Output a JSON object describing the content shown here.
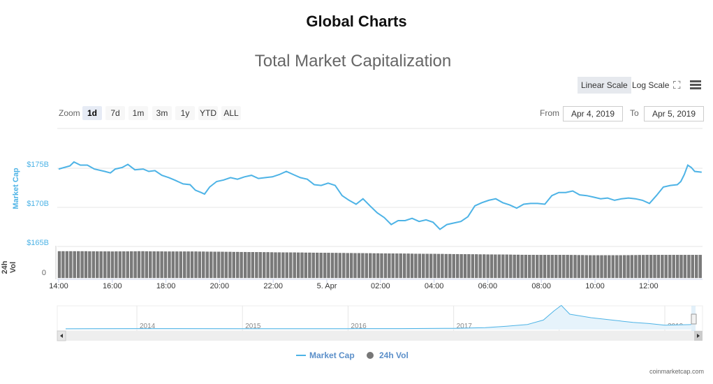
{
  "page_title": "Global Charts",
  "toolbar": {
    "linear": "Linear Scale",
    "log": "Log Scale",
    "fullscreen_icon": "expand-icon",
    "menu_icon": "hamburger-icon"
  },
  "zoom": {
    "label": "Zoom",
    "buttons": [
      "1d",
      "7d",
      "1m",
      "3m",
      "1y",
      "YTD",
      "ALL"
    ],
    "selected": "1d"
  },
  "range": {
    "from_label": "From",
    "from": "Apr 4, 2019",
    "to_label": "To",
    "to": "Apr 5, 2019"
  },
  "colors": {
    "line": "#4db3e6",
    "bars": "#7a7a7a",
    "axis_text": "#4db3e6"
  },
  "chart_data": {
    "type": "line",
    "title": "Total Market Capitalization",
    "ylabel": "Market Cap",
    "y2label": "24h Vol",
    "y_ticks": [
      "$175B",
      "$170B",
      "$165B"
    ],
    "y_tick_values": [
      175,
      170,
      165
    ],
    "vol_ticks": [
      "0"
    ],
    "ylim": [
      165,
      178.5
    ],
    "x_unit": "hours since Apr 4 14:00",
    "xlim": [
      -0.05,
      24
    ],
    "x_ticks": [
      "14:00",
      "16:00",
      "18:00",
      "20:00",
      "22:00",
      "5. Apr",
      "02:00",
      "04:00",
      "06:00",
      "08:00",
      "10:00",
      "12:00"
    ],
    "x_tick_values": [
      0,
      2,
      4,
      6,
      8,
      10,
      12,
      14,
      16,
      18,
      20,
      22
    ],
    "series": [
      {
        "name": "Market Cap",
        "x": [
          0,
          0.42,
          0.57,
          0.81,
          1.07,
          1.33,
          1.72,
          1.93,
          2.11,
          2.37,
          2.58,
          2.84,
          3.15,
          3.36,
          3.59,
          3.85,
          4.11,
          4.32,
          4.64,
          4.9,
          5.1,
          5.31,
          5.44,
          5.63,
          5.89,
          6.15,
          6.41,
          6.67,
          6.93,
          7.19,
          7.45,
          7.71,
          7.97,
          8.23,
          8.49,
          8.75,
          9.01,
          9.27,
          9.53,
          9.79,
          10.05,
          10.31,
          10.57,
          10.83,
          11.09,
          11.35,
          11.61,
          11.88,
          12.14,
          12.4,
          12.66,
          12.92,
          13.18,
          13.44,
          13.7,
          13.96,
          14.22,
          14.48,
          14.74,
          15.0,
          15.26,
          15.52,
          15.78,
          16.04,
          16.3,
          16.56,
          16.82,
          17.08,
          17.34,
          17.6,
          17.86,
          18.13,
          18.39,
          18.65,
          18.91,
          19.17,
          19.43,
          19.69,
          19.95,
          20.21,
          20.47,
          20.73,
          20.99,
          21.25,
          21.51,
          21.77,
          22.03,
          22.29,
          22.55,
          22.81,
          23.07,
          23.2,
          23.33,
          23.46,
          23.59,
          23.72,
          23.98
        ],
        "values": [
          174.9,
          175.3,
          175.8,
          175.4,
          175.4,
          174.9,
          174.6,
          174.4,
          174.9,
          175.1,
          175.5,
          174.8,
          174.9,
          174.6,
          174.7,
          174.1,
          173.8,
          173.5,
          173.0,
          172.9,
          172.2,
          171.9,
          171.7,
          172.6,
          173.3,
          173.5,
          173.8,
          173.6,
          173.9,
          174.1,
          173.7,
          173.8,
          173.9,
          174.2,
          174.6,
          174.2,
          173.8,
          173.6,
          172.9,
          172.8,
          173.1,
          172.8,
          171.5,
          170.9,
          170.4,
          171.1,
          170.2,
          169.3,
          168.7,
          167.8,
          168.3,
          168.3,
          168.6,
          168.2,
          168.4,
          168.1,
          167.2,
          167.8,
          168.0,
          168.2,
          168.8,
          170.2,
          170.6,
          170.9,
          171.1,
          170.6,
          170.3,
          169.9,
          170.4,
          170.5,
          170.5,
          170.4,
          171.5,
          171.9,
          171.9,
          172.1,
          171.6,
          171.5,
          171.3,
          171.1,
          171.2,
          170.9,
          171.1,
          171.2,
          171.1,
          170.9,
          170.5,
          171.5,
          172.6,
          172.8,
          172.9,
          173.3,
          174.2,
          175.4,
          175.1,
          174.6,
          174.5
        ]
      },
      {
        "name": "24h Vol",
        "type": "column",
        "relative_values": [
          1.0,
          1.0,
          0.99,
          1.0,
          0.99,
          0.99,
          0.98,
          0.97,
          0.96,
          0.95,
          0.94,
          0.93,
          0.92,
          0.91,
          0.9,
          0.89,
          0.88,
          0.87,
          0.86,
          0.86,
          0.85,
          0.85,
          0.86,
          0.86,
          0.86
        ]
      }
    ],
    "legend": [
      "Market Cap",
      "24h Vol"
    ],
    "legend_position": "bottom",
    "navigator": {
      "x_ticks": [
        "2014",
        "2015",
        "2016",
        "2017",
        "2018",
        "2019"
      ],
      "x_tick_values": [
        2014,
        2015,
        2016,
        2017,
        2018,
        2019
      ],
      "x": [
        2013.3,
        2014,
        2015,
        2016,
        2016.5,
        2017,
        2017.3,
        2017.5,
        2017.7,
        2017.85,
        2017.95,
        2018.02,
        2018.1,
        2018.2,
        2018.3,
        2018.5,
        2018.7,
        2018.85,
        2019,
        2019.25
      ],
      "values": [
        1.5,
        10,
        5,
        7,
        10,
        18,
        40,
        90,
        150,
        300,
        610,
        800,
        500,
        440,
        380,
        300,
        220,
        180,
        125,
        145
      ]
    },
    "credit": "coinmarketcap.com"
  }
}
